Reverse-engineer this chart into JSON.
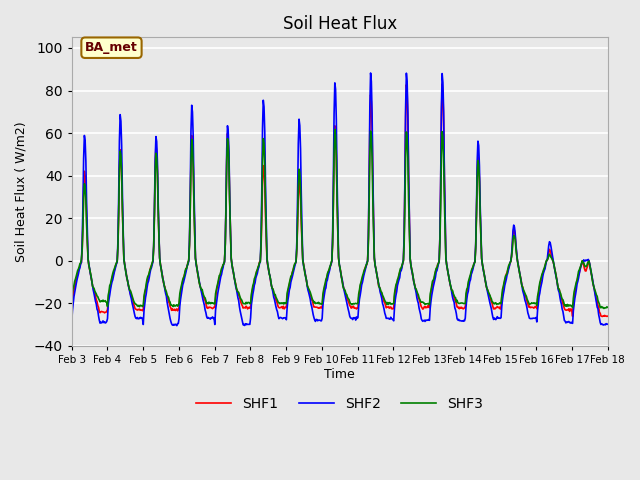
{
  "title": "Soil Heat Flux",
  "xlabel": "Time",
  "ylabel": "Soil Heat Flux ( W/m2)",
  "ylim": [
    -40,
    105
  ],
  "background_color": "#e8e8e8",
  "plot_bg_color": "#e8e8e8",
  "grid_color": "white",
  "series": [
    "SHF1",
    "SHF2",
    "SHF3"
  ],
  "colors": [
    "red",
    "blue",
    "green"
  ],
  "annotation_text": "BA_met",
  "annotation_bg": "#ffffcc",
  "annotation_border": "#996600",
  "yticks": [
    -40,
    -20,
    0,
    20,
    40,
    60,
    80,
    100
  ],
  "xtick_labels": [
    "Feb 3",
    "Feb 4",
    "Feb 5",
    "Feb 6",
    "Feb 7",
    "Feb 8",
    "Feb 9",
    "Feb 10",
    "Feb 11",
    "Feb 12",
    "Feb 13",
    "Feb 14",
    "Feb 15",
    "Feb 16",
    "Feb 17",
    "Feb 18"
  ],
  "n_days": 15,
  "pts_per_day": 48,
  "day_peaks_shf2": [
    60,
    70,
    60,
    75,
    65,
    78,
    68,
    86,
    90,
    90,
    90,
    58,
    17,
    9,
    0
  ],
  "day_peaks_shf1": [
    43,
    53,
    55,
    60,
    60,
    46,
    38,
    65,
    80,
    85,
    85,
    50,
    15,
    5,
    -5
  ],
  "day_peaks_shf3": [
    37,
    53,
    52,
    58,
    58,
    59,
    44,
    63,
    63,
    62,
    62,
    48,
    12,
    3,
    -3
  ],
  "day_troughs_shf2": [
    -29,
    -27,
    -30,
    -27,
    -30,
    -27,
    -28,
    -27,
    -27,
    -28,
    -28,
    -27,
    -27,
    -29,
    -30
  ],
  "day_troughs_shf1": [
    -24,
    -23,
    -23,
    -22,
    -22,
    -22,
    -22,
    -22,
    -22,
    -22,
    -22,
    -22,
    -22,
    -23,
    -26
  ],
  "day_troughs_shf3": [
    -19,
    -21,
    -21,
    -20,
    -20,
    -20,
    -20,
    -20,
    -20,
    -20,
    -20,
    -20,
    -20,
    -21,
    -22
  ]
}
